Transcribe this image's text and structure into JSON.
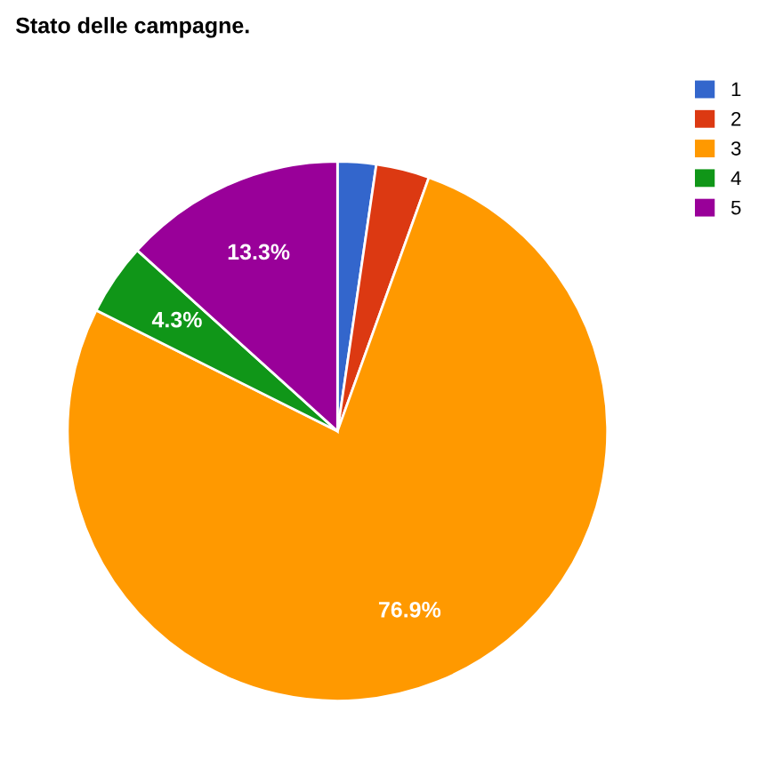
{
  "chart_data": {
    "type": "pie",
    "title": "Stato delle campagne.",
    "categories": [
      "1",
      "2",
      "3",
      "4",
      "5"
    ],
    "values": [
      2.3,
      3.2,
      76.9,
      4.3,
      13.3
    ],
    "value_labels": [
      null,
      null,
      "76.9%",
      "4.3%",
      "13.3%"
    ],
    "colors": [
      "#3366cc",
      "#dc3912",
      "#ff9900",
      "#109618",
      "#990099"
    ],
    "legend": "top right"
  }
}
